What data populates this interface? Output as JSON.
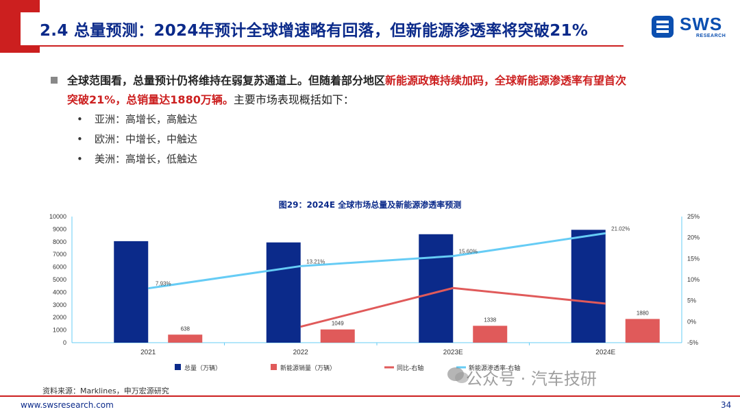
{
  "header": {
    "title": "2.4 总量预测：2024年预计全球增速略有回落，但新能源渗透率将突破21%",
    "logo_text": "SWS",
    "logo_sub": "RESEARCH"
  },
  "body": {
    "p_part1": "全球范围看，总量预计仍将维持在弱复苏通道上。但随着部分地区",
    "p_part2": "新能源政策持续加码，全球新能源渗透率有望首次",
    "p_part3": "突破21%，总销量达1880万辆。",
    "p_part4": "主要市场表现概括如下：",
    "bullets": [
      "亚洲：高增长，高触达",
      "欧洲：中增长，中触达",
      "美洲：高增长，低触达"
    ],
    "bullet_symbol": "•"
  },
  "chart_data": {
    "type": "bar",
    "title": "图29：2024E 全球市场总量及新能源渗透率预测",
    "categories": [
      "2021",
      "2022",
      "2023E",
      "2024E"
    ],
    "y_left": {
      "lim": [
        0,
        10000
      ],
      "ticks": [
        0,
        1000,
        2000,
        3000,
        4000,
        5000,
        6000,
        7000,
        8000,
        9000,
        10000
      ]
    },
    "y_right": {
      "lim": [
        -5,
        25
      ],
      "ticks": [
        "-5%",
        "0%",
        "5%",
        "10%",
        "15%",
        "20%",
        "25%"
      ],
      "tick_values": [
        -5,
        0,
        5,
        10,
        15,
        20,
        25
      ]
    },
    "series": [
      {
        "name": "总量（万辆）",
        "kind": "bar",
        "axis": "left",
        "color": "#0b2a8a",
        "values": [
          8050,
          7950,
          8600,
          8950
        ]
      },
      {
        "name": "新能源销量（万辆）",
        "kind": "bar",
        "axis": "left",
        "color": "#e05a5a",
        "values": [
          638,
          1049,
          1338,
          1880
        ],
        "labels": [
          "638",
          "1049",
          "1338",
          "1880"
        ]
      },
      {
        "name": "同比-右轴",
        "kind": "line",
        "axis": "right",
        "color": "#e05a5a",
        "values": [
          null,
          -1.2,
          8,
          4.3
        ]
      },
      {
        "name": "新能源渗透率-右轴",
        "kind": "line",
        "axis": "right",
        "color": "#66ccf5",
        "values": [
          7.93,
          13.21,
          15.6,
          21.02
        ],
        "labels": [
          "7.93%",
          "13.21%",
          "15.60%",
          "21.02%"
        ]
      }
    ],
    "legend_position": "bottom"
  },
  "footer": {
    "source": "资料来源：Marklines，申万宏源研究",
    "url": "www.swsresearch.com",
    "page": "34"
  },
  "watermark": {
    "text": "公众号 · 汽车技研"
  }
}
